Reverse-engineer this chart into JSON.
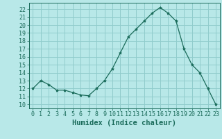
{
  "x": [
    0,
    1,
    2,
    3,
    4,
    5,
    6,
    7,
    8,
    9,
    10,
    11,
    12,
    13,
    14,
    15,
    16,
    17,
    18,
    19,
    20,
    21,
    22,
    23
  ],
  "y": [
    12,
    13,
    12.5,
    11.8,
    11.8,
    11.5,
    11.2,
    11.1,
    12.0,
    13.0,
    14.5,
    16.5,
    18.5,
    19.5,
    20.5,
    21.5,
    22.2,
    21.5,
    20.5,
    17.0,
    15.0,
    14.0,
    12.0,
    10.0
  ],
  "line_color": "#1a6b5a",
  "marker": "*",
  "marker_size": 3,
  "bg_color": "#b8e8e8",
  "grid_color": "#90cccc",
  "xlabel": "Humidex (Indice chaleur)",
  "ylabel_ticks": [
    10,
    11,
    12,
    13,
    14,
    15,
    16,
    17,
    18,
    19,
    20,
    21,
    22
  ],
  "ylim": [
    9.5,
    22.8
  ],
  "xlim": [
    -0.5,
    23.5
  ],
  "font_color": "#1a6b5a",
  "tick_labelsize": 6,
  "xlabel_fontsize": 7.5
}
